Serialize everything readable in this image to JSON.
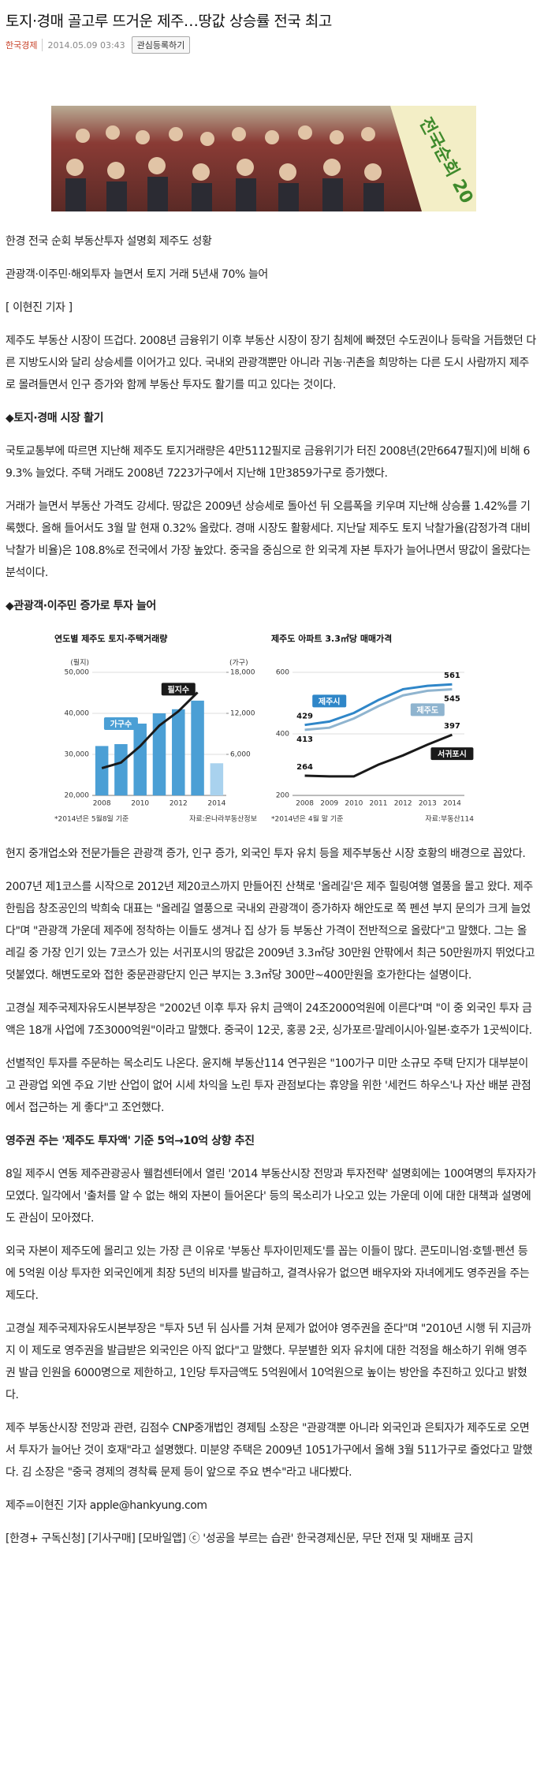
{
  "header": {
    "title": "토지·경매 골고루 뜨거운 제주…땅값 상승률 전국 최고",
    "source": "한국경제",
    "date": "2014.05.09 03:43",
    "button": "관심등록하기"
  },
  "photo_text": "전국순회 20",
  "body": [
    "한경 전국 순회 부동산투자 설명회 제주도 성황",
    "관광객·이주민·해외투자 늘면서 토지 거래 5년새 70% 늘어",
    "[ 이현진 기자 ]",
    "제주도 부동산 시장이 뜨겁다. 2008년 금융위기 이후 부동산 시장이 장기 침체에 빠졌던 수도권이나 등락을 거듭했던 다른 지방도시와 달리 상승세를 이어가고 있다. 국내외 관광객뿐만 아니라 귀농·귀촌을 희망하는 다른 도시 사람까지 제주로 몰려들면서 인구 증가와 함께 부동산 투자도 활기를 띠고 있다는 것이다.",
    "◆토지·경매 시장 활기",
    "국토교통부에 따르면 지난해 제주도 토지거래량은 4만5112필지로 금융위기가 터진 2008년(2만6647필지)에 비해 69.3% 늘었다. 주택 거래도 2008년 7223가구에서 지난해 1만3859가구로 증가했다.",
    "거래가 늘면서 부동산 가격도 강세다. 땅값은 2009년 상승세로 돌아선 뒤 오름폭을 키우며 지난해 상승률 1.42%를 기록했다. 올해 들어서도 3월 말 현재 0.32% 올랐다. 경매 시장도 활황세다. 지난달 제주도 토지 낙찰가율(감정가격 대비 낙찰가 비율)은 108.8%로 전국에서 가장 높았다. 중국을 중심으로 한 외국계 자본 투자가 늘어나면서 땅값이 올랐다는 분석이다.",
    "◆관광객·이주민 증가로 투자 늘어",
    "현지 중개업소와 전문가들은 관광객 증가, 인구 증가, 외국인 투자 유치 등을 제주부동산 시장 호황의 배경으로 꼽았다.",
    "2007년 제1코스를 시작으로 2012년 제20코스까지 만들어진 산책로 '올레길'은 제주 힐링여행 열풍을 몰고 왔다. 제주 한림읍 창조공인의 박희숙 대표는 \"올레길 열풍으로 국내외 관광객이 증가하자 해안도로 쪽 펜션 부지 문의가 크게 늘었다\"며 \"관광객 가운데 제주에 정착하는 이들도 생겨나 집 상가 등 부동산 가격이 전반적으로 올랐다\"고 말했다. 그는 올레길 중 가장 인기 있는 7코스가 있는 서귀포시의 땅값은 2009년 3.3㎡당 30만원 안팎에서 최근 50만원까지 뛰었다고 덧붙였다. 해변도로와 접한 중문관광단지 인근 부지는 3.3㎡당 300만~400만원을 호가한다는 설명이다.",
    "고경실 제주국제자유도시본부장은 \"2002년 이후 투자 유치 금액이 24조2000억원에 이른다\"며 \"이 중 외국인 투자 금액은 18개 사업에 7조3000억원\"이라고 말했다. 중국이 12곳, 홍콩 2곳, 싱가포르·말레이시아·일본·호주가 1곳씩이다.",
    "선별적인 투자를 주문하는 목소리도 나온다. 윤지해 부동산114 연구원은 \"100가구 미만 소규모 주택 단지가 대부분이고 관광업 외엔 주요 기반 산업이 없어 시세 차익을 노린 투자 관점보다는 휴양을 위한 '세컨드 하우스'나 자산 배분 관점에서 접근하는 게 좋다\"고 조언했다.",
    "영주권 주는 '제주도 투자액' 기준 5억→10억 상향 추진",
    "8일 제주시 연동 제주관광공사 웰컴센터에서 열린 '2014 부동산시장 전망과 투자전략' 설명회에는 100여명의 투자자가 모였다. 일각에서 '출처를 알 수 없는 해외 자본이 들어온다' 등의 목소리가 나오고 있는 가운데 이에 대한 대책과 설명에도 관심이 모아졌다.",
    "외국 자본이 제주도에 몰리고 있는 가장 큰 이유로 '부동산 투자이민제도'를 꼽는 이들이 많다. 콘도미니엄·호텔·펜션 등에 5억원 이상 투자한 외국인에게 최장 5년의 비자를 발급하고, 결격사유가 없으면 배우자와 자녀에게도 영주권을 주는 제도다.",
    "고경실 제주국제자유도시본부장은 \"투자 5년 뒤 심사를 거쳐 문제가 없어야 영주권을 준다\"며 \"2010년 시행 뒤 지금까지 이 제도로 영주권을 발급받은 외국인은 아직 없다\"고 말했다. 무분별한 외자 유치에 대한 걱정을 해소하기 위해 영주권 발급 인원을 6000명으로 제한하고, 1인당 투자금액도 5억원에서 10억원으로 높이는 방안을 추진하고 있다고 밝혔다.",
    "제주 부동산시장 전망과 관련, 김점수 CNP중개법인 경제팀 소장은 \"관광객뿐 아니라 외국인과 은퇴자가 제주도로 오면서 투자가 늘어난 것이 호재\"라고 설명했다. 미분양 주택은 2009년 1051가구에서 올해 3월 511가구로 줄었다고 말했다. 김 소장은 \"중국 경제의 경착륙 문제 등이 앞으로 주요 변수\"라고 내다봤다.",
    "제주=이현진 기자 apple@hankyung.com",
    "[한경+ 구독신청] [기사구매] [모바일앱] ⓒ '성공을 부르는 습관' 한국경제신문, 무단 전재 및 재배포 금지"
  ],
  "chart_data": [
    {
      "type": "bar",
      "title": "연도별 제주도 토지·주택거래량",
      "ylabel": "(필지)",
      "y2label": "(가구)",
      "categories": [
        "2008",
        null,
        "2010",
        null,
        "2012",
        null,
        "2014"
      ],
      "series": [
        {
          "name": "가구수",
          "type": "bar",
          "axis": "y2",
          "color": "#4b9fd5",
          "colors": [
            "#4b9fd5",
            "#4b9fd5",
            "#4b9fd5",
            "#4b9fd5",
            "#4b9fd5",
            "#4b9fd5",
            "#a9d2ee"
          ],
          "values": [
            7223,
            7500,
            10500,
            12000,
            12600,
            13859,
            4700
          ]
        },
        {
          "name": "필지수",
          "type": "line",
          "color": "#1a1a1a",
          "values": [
            26647,
            28000,
            32000,
            37000,
            40500,
            45112,
            null
          ]
        }
      ],
      "ylim": [
        20000,
        50000
      ],
      "yticks": [
        {
          "value": 20000,
          "label": "20,000"
        },
        {
          "value": 30000,
          "label": "30,000"
        },
        {
          "value": 40000,
          "label": "40,000"
        },
        {
          "value": 50000,
          "label": "50,000"
        }
      ],
      "y2lim": [
        0,
        18000
      ],
      "y2ticks": [
        {
          "value": 6000,
          "label": "6,000"
        },
        {
          "value": 12000,
          "label": "12,000"
        },
        {
          "value": 18000,
          "label": "18,000"
        }
      ],
      "grid": true,
      "note": "*2014년은 5월8일 기준",
      "source": "자료:온나라부동산정보"
    },
    {
      "type": "line",
      "title": "제주도 아파트 3.3㎡당 매매가격",
      "categories": [
        "2008",
        "2009",
        "2010",
        "2011",
        "2012",
        "2013",
        "2014"
      ],
      "series": [
        {
          "name": "제주시",
          "color": "#2f86c8",
          "values": [
            429,
            440,
            468,
            510,
            545,
            556,
            561
          ]
        },
        {
          "name": "제주도",
          "color": "#8fb4cf",
          "values": [
            413,
            420,
            450,
            490,
            525,
            540,
            545
          ]
        },
        {
          "name": "서귀포시",
          "color": "#1a1a1a",
          "values": [
            264,
            262,
            262,
            300,
            330,
            365,
            397
          ]
        }
      ],
      "ylim": [
        200,
        600
      ],
      "yticks": [
        200,
        400,
        600
      ],
      "grid": true,
      "note": "*2014년은 4월 말 기준",
      "source": "자료:부동산114"
    }
  ]
}
